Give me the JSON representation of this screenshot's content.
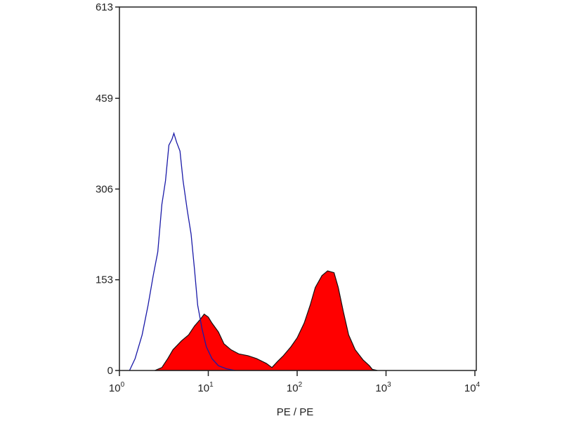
{
  "chart_data": {
    "type": "area",
    "xlabel": "PE / PE",
    "ylabel": "",
    "x_scale": "log",
    "xlim": [
      1,
      10000
    ],
    "ylim": [
      0,
      613
    ],
    "grid": false,
    "y_ticks": [
      "0",
      "153",
      "306",
      "459",
      "613"
    ],
    "x_ticks": [
      {
        "base": "10",
        "exp": "0",
        "value": 1
      },
      {
        "base": "10",
        "exp": "1",
        "value": 10
      },
      {
        "base": "10",
        "exp": "2",
        "value": 100
      },
      {
        "base": "10",
        "exp": "3",
        "value": 1000
      },
      {
        "base": "10",
        "exp": "4",
        "value": 10000
      }
    ],
    "series": [
      {
        "style": "outline",
        "color": "#1a1aa8",
        "x": [
          1.3,
          1.5,
          1.8,
          2.1,
          2.4,
          2.7,
          3.0,
          3.3,
          3.6,
          3.9,
          4.1,
          4.4,
          4.8,
          5.2,
          5.8,
          6.4,
          7.0,
          7.6,
          8.5,
          9.5,
          11,
          13,
          16,
          20
        ],
        "y": [
          0,
          20,
          60,
          110,
          160,
          200,
          280,
          320,
          380,
          390,
          400,
          385,
          370,
          320,
          270,
          230,
          170,
          110,
          70,
          40,
          20,
          8,
          3,
          0
        ]
      },
      {
        "style": "filled",
        "color": "#ff0000",
        "x": [
          2.5,
          3,
          3.5,
          4,
          5,
          6,
          7,
          8,
          9,
          10,
          11,
          13,
          15,
          18,
          22,
          28,
          35,
          45,
          52,
          60,
          70,
          85,
          100,
          120,
          140,
          160,
          190,
          220,
          260,
          290,
          330,
          380,
          450,
          550,
          650,
          700,
          800
        ],
        "y": [
          0,
          5,
          20,
          35,
          50,
          60,
          75,
          85,
          95,
          90,
          80,
          65,
          45,
          35,
          28,
          25,
          20,
          12,
          5,
          15,
          25,
          40,
          55,
          80,
          110,
          140,
          160,
          168,
          165,
          140,
          100,
          60,
          35,
          18,
          8,
          2,
          0
        ]
      }
    ]
  }
}
